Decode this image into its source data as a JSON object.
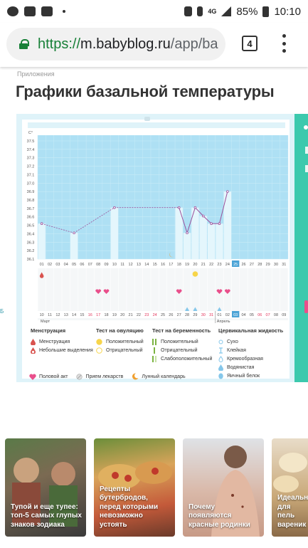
{
  "status_bar": {
    "time": "10:10",
    "battery": "85%",
    "network": "4G",
    "icons": [
      "whatsapp-icon",
      "folder-icon",
      "youtube-icon",
      "sim-icon",
      "vibrate-icon",
      "signal-icon",
      "battery-icon"
    ]
  },
  "browser": {
    "url_scheme": "https://",
    "url_host": "m.babyblog.ru",
    "url_path": "/app/ba",
    "tab_count": "4"
  },
  "page": {
    "breadcrumb": "Приложения",
    "title": "Графики базальной температуры",
    "side_marker": "Б"
  },
  "chart_data": {
    "type": "line",
    "unit_label": "C°",
    "y_ticks": [
      "37.5",
      "37.4",
      "37.3",
      "37.2",
      "37.1",
      "37.0",
      "36.9",
      "36.8",
      "36.7",
      "36.6",
      "36.5",
      "36.4",
      "36.3",
      "36.2",
      "36.1"
    ],
    "ylim": [
      36.1,
      37.5
    ],
    "day_labels": [
      "01",
      "02",
      "03",
      "04",
      "05",
      "06",
      "07",
      "08",
      "09",
      "10",
      "11",
      "12",
      "13",
      "14",
      "15",
      "16",
      "17",
      "18",
      "19",
      "20",
      "21",
      "22",
      "23",
      "24",
      "25",
      "26",
      "27",
      "28",
      "29",
      "30",
      "31"
    ],
    "highlight_day": "25",
    "points": [
      {
        "day": 1,
        "value": 36.52
      },
      {
        "day": 5,
        "value": 36.41
      },
      {
        "day": 10,
        "value": 36.71
      },
      {
        "day": 18,
        "value": 36.71
      },
      {
        "day": 19,
        "value": 36.41
      },
      {
        "day": 20,
        "value": 36.71
      },
      {
        "day": 21,
        "value": 36.61
      },
      {
        "day": 22,
        "value": 36.52
      },
      {
        "day": 23,
        "value": 36.52
      },
      {
        "day": 24,
        "value": 36.9
      }
    ],
    "cycle_day_labels": [
      "01",
      "02",
      "03",
      "04",
      "05",
      "06",
      "07",
      "08",
      "09",
      "10",
      "11",
      "12",
      "13",
      "14",
      "15",
      "16",
      "17",
      "18",
      "19",
      "20",
      "21",
      "22",
      "23",
      "24",
      "25",
      "26",
      "27",
      "28",
      "29",
      "30",
      "31"
    ],
    "date_labels": [
      "10",
      "11",
      "12",
      "13",
      "14",
      "15",
      "16",
      "17",
      "18",
      "19",
      "20",
      "21",
      "22",
      "23",
      "24",
      "25",
      "26",
      "27",
      "28",
      "29",
      "30",
      "31",
      "01",
      "02",
      "03",
      "04",
      "05",
      "06",
      "07",
      "08",
      "09"
    ],
    "weekend_indexes": [
      6,
      7,
      13,
      14,
      20,
      21,
      27,
      28
    ],
    "current_date_index": 24,
    "month_left": "Март",
    "month_right": "Апрель",
    "menstruation_days": [
      1
    ],
    "ovulation_test_days": [
      20
    ],
    "sex_days": [
      8,
      9,
      18,
      23,
      24
    ],
    "mucus_days": [
      19,
      20,
      23
    ]
  },
  "legend": {
    "menstruation": {
      "head": "Менструация",
      "items": [
        "Менструация",
        "Небольшие выделения"
      ]
    },
    "ovulation": {
      "head": "Тест на овуляцию",
      "items": [
        "Положительный",
        "Отрицательный"
      ]
    },
    "pregnancy": {
      "head": "Тест на беременность",
      "items": [
        "Положительный",
        "Отрицательный",
        "Слабоположительный"
      ]
    },
    "mucus": {
      "head": "Цервикальная жидкость",
      "items": [
        "Сухо",
        "Клейкая",
        "Кремообразная",
        "Водянистая",
        "Яичный белок"
      ]
    },
    "bottom": [
      "Половой акт",
      "Прием лекарств",
      "Лунный календарь"
    ]
  },
  "colors": {
    "chart_fill": "#aee0f4",
    "line": "#9b4f9a",
    "pink": "#e94f8b",
    "yellow": "#f7d54a",
    "green": "#3cc9ad",
    "drop_blue": "#85c7ea",
    "menstruation_red": "#d9534f"
  },
  "news": [
    {
      "caption": "Тупой и еще тупее: топ-5 самых глупых знаков зодиака"
    },
    {
      "caption": "Рецепты бутербродов, перед которыми невозможно устоять"
    },
    {
      "caption": "Почему появляются красные родинки"
    },
    {
      "caption": "Идеальн для пель вареник"
    }
  ]
}
